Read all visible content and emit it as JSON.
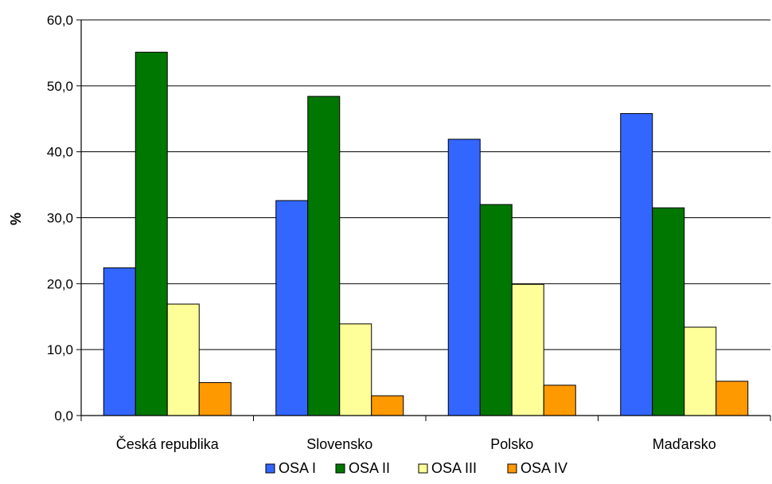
{
  "chart_data": {
    "type": "bar",
    "title": "",
    "xlabel": "",
    "ylabel": "%",
    "ylim": [
      0,
      60
    ],
    "ytick_step": 10,
    "ytick_labels": [
      "0,0",
      "10,0",
      "20,0",
      "30,0",
      "40,0",
      "50,0",
      "60,0"
    ],
    "grid": true,
    "legend_position": "bottom",
    "categories": [
      "Česká republika",
      "Slovensko",
      "Polsko",
      "Maďarsko"
    ],
    "series": [
      {
        "name": "OSA I",
        "color": "#3366FF",
        "values": [
          22.4,
          32.6,
          41.9,
          45.8
        ]
      },
      {
        "name": "OSA II",
        "color": "#007700",
        "values": [
          55.1,
          48.4,
          32.0,
          31.5
        ]
      },
      {
        "name": "OSA III",
        "color": "#FFFF99",
        "values": [
          16.9,
          13.9,
          19.9,
          13.4
        ]
      },
      {
        "name": "OSA IV",
        "color": "#FF9900",
        "values": [
          5.0,
          3.0,
          4.6,
          5.2
        ]
      }
    ]
  }
}
